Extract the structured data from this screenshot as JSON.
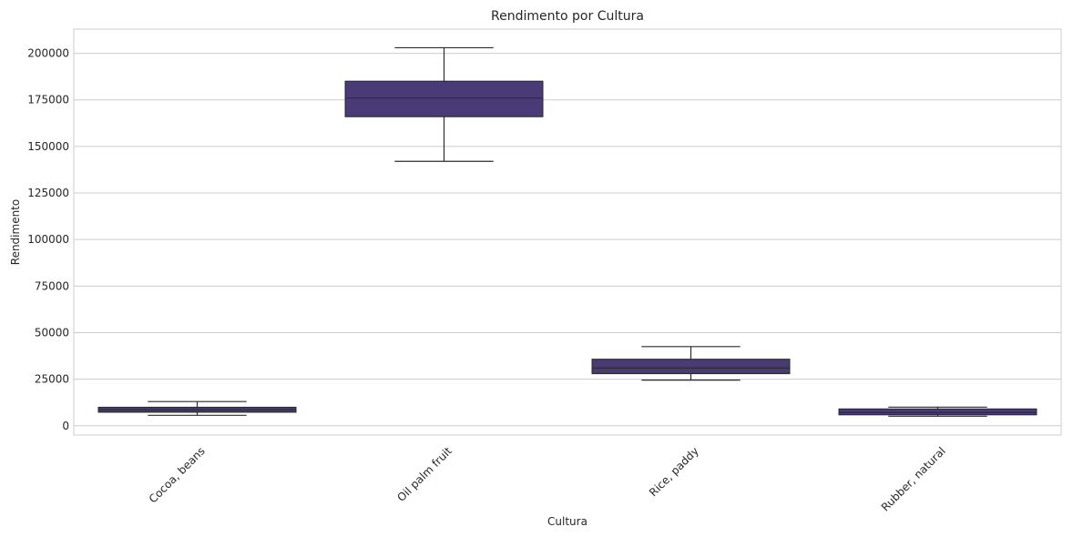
{
  "chart_data": {
    "type": "box",
    "title": "Rendimento por Cultura",
    "xlabel": "Cultura",
    "ylabel": "Rendimento",
    "categories": [
      "Cocoa, beans",
      "Oil palm fruit",
      "Rice, paddy",
      "Rubber, natural"
    ],
    "boxes": [
      {
        "category": "Cocoa, beans",
        "whisker_low": 5600,
        "q1": 7300,
        "median": 8600,
        "q3": 9900,
        "whisker_high": 13000
      },
      {
        "category": "Oil palm fruit",
        "whisker_low": 142000,
        "q1": 166000,
        "median": 176000,
        "q3": 185000,
        "whisker_high": 203000
      },
      {
        "category": "Rice, paddy",
        "whisker_low": 24500,
        "q1": 28000,
        "median": 31000,
        "q3": 35700,
        "whisker_high": 42500
      },
      {
        "category": "Rubber, natural",
        "whisker_low": 5100,
        "q1": 5900,
        "median": 7100,
        "q3": 9000,
        "whisker_high": 10000
      }
    ],
    "yticks": [
      0,
      25000,
      50000,
      75000,
      100000,
      125000,
      150000,
      175000,
      200000
    ],
    "ylim": [
      -5000,
      213000
    ],
    "grid": "horizontal",
    "box_color": "#4a3b78",
    "line_color": "#2d2d2d",
    "grid_color": "#cccccc",
    "frame_color": "#cccccc"
  }
}
